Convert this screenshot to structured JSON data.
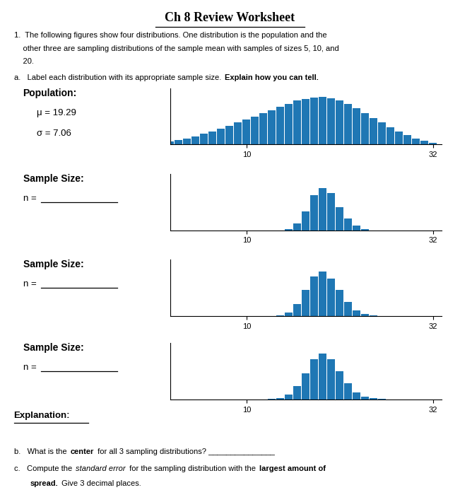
{
  "title": "Ch 8 Review Worksheet",
  "annotations": [
    [
      "1.  The following figures show four distributions. One distribution is the population and the"
    ],
    [
      "    other three are sampling distributions of the sample mean with samples of sizes 5, 10, and"
    ],
    [
      "    20."
    ],
    [
      "a.   Label each distribution with its appropriate sample size. ",
      "Explain how you can tell."
    ],
    [
      "Explanation:"
    ],
    [
      "b.   What is the ",
      "center",
      " for all 3 sampling distributions? _______________"
    ],
    [
      "c.   Compute the ",
      "standard error",
      " for the sampling distribution with the ",
      "largest amount of"
    ],
    [
      "spread.",
      " Give 3 decimal places."
    ]
  ],
  "chart_data": [
    {
      "type": "bar",
      "x": [
        1,
        2,
        3,
        4,
        5,
        6,
        7,
        8,
        9,
        10,
        11,
        12,
        13,
        14,
        15,
        16,
        17,
        18,
        19,
        20,
        21,
        22,
        23,
        24,
        25,
        26,
        27,
        28,
        29,
        30,
        31,
        32
      ],
      "values": [
        0.5,
        0.7,
        1.0,
        1.3,
        1.7,
        2.1,
        2.5,
        3.0,
        3.5,
        4.0,
        4.5,
        5.0,
        5.5,
        6.0,
        6.5,
        7.0,
        7.3,
        7.5,
        7.6,
        7.4,
        7.0,
        6.5,
        5.8,
        5.0,
        4.2,
        3.5,
        2.8,
        2.1,
        1.5,
        1.0,
        0.6,
        0.3
      ],
      "xlim": [
        1,
        33
      ],
      "xticks": [
        10,
        32
      ],
      "ylim": [
        0,
        9
      ],
      "yticks": [],
      "tick_labels": "x",
      "annotations": [
        "Population:",
        "μ = 19.29",
        "σ = 7.06"
      ]
    },
    {
      "type": "bar",
      "x": [
        15,
        16,
        17,
        18,
        19,
        20,
        21,
        22,
        23,
        24
      ],
      "values": [
        0.3,
        1.5,
        4.0,
        7.5,
        9.0,
        8.0,
        5.0,
        2.5,
        1.0,
        0.3
      ],
      "xlim": [
        1,
        33
      ],
      "xticks": [
        10,
        32
      ],
      "ylim": [
        0,
        12
      ],
      "yticks": [],
      "tick_labels": "x",
      "annotations": [
        "Sample Size:",
        "n = "
      ]
    },
    {
      "type": "bar",
      "x": [
        14,
        15,
        16,
        17,
        18,
        19,
        20,
        21,
        22,
        23,
        24,
        25
      ],
      "values": [
        0.2,
        0.8,
        2.5,
        5.5,
        8.5,
        9.5,
        8.0,
        5.5,
        3.0,
        1.2,
        0.4,
        0.1
      ],
      "xlim": [
        1,
        33
      ],
      "xticks": [
        10,
        32
      ],
      "ylim": [
        0,
        12
      ],
      "yticks": [],
      "tick_labels": "x",
      "annotations": [
        "Sample Size:",
        "n = "
      ]
    },
    {
      "type": "bar",
      "x": [
        13,
        14,
        15,
        16,
        17,
        18,
        19,
        20,
        21,
        22,
        23,
        24,
        25,
        26
      ],
      "values": [
        0.1,
        0.3,
        1.0,
        2.8,
        5.5,
        8.5,
        9.8,
        8.5,
        6.0,
        3.5,
        1.5,
        0.5,
        0.2,
        0.05
      ],
      "xlim": [
        1,
        33
      ],
      "xticks": [
        10,
        32
      ],
      "ylim": [
        0,
        12
      ],
      "yticks": [],
      "tick_labels": "x",
      "annotations": [
        "Sample Size:",
        "n = "
      ]
    }
  ]
}
